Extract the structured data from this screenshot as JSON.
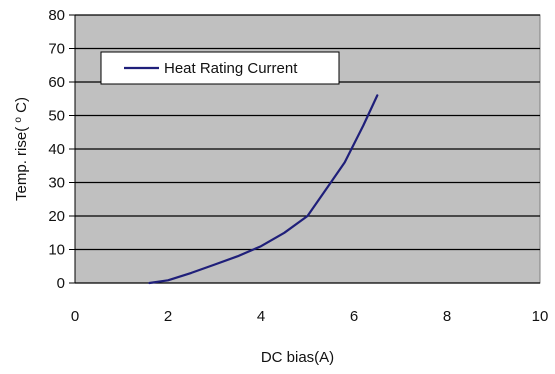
{
  "chart_data": {
    "type": "line",
    "title": "",
    "xlabel": "DC bias(A)",
    "ylabel": {
      "prefix": "Temp. rise(",
      "sup": "o",
      "suffix": "C)"
    },
    "xlim": [
      0,
      10
    ],
    "ylim": [
      0,
      80
    ],
    "xticks": [
      0,
      2,
      4,
      6,
      8,
      10
    ],
    "yticks": [
      0,
      10,
      20,
      30,
      40,
      50,
      60,
      70,
      80
    ],
    "grid": "horizontal",
    "legend_position": "top-left",
    "colors": {
      "plot_background": "#c0c0c0",
      "series": "#1f1f7a",
      "grid": "#000000"
    },
    "series": [
      {
        "name": "Heat Rating Current",
        "x": [
          1.6,
          2.0,
          2.5,
          3.0,
          3.5,
          4.0,
          4.5,
          5.0,
          5.5,
          5.8,
          6.2,
          6.5
        ],
        "y": [
          0,
          0.8,
          3,
          5.5,
          8,
          11,
          15,
          20,
          30,
          36,
          47,
          56
        ]
      }
    ]
  }
}
